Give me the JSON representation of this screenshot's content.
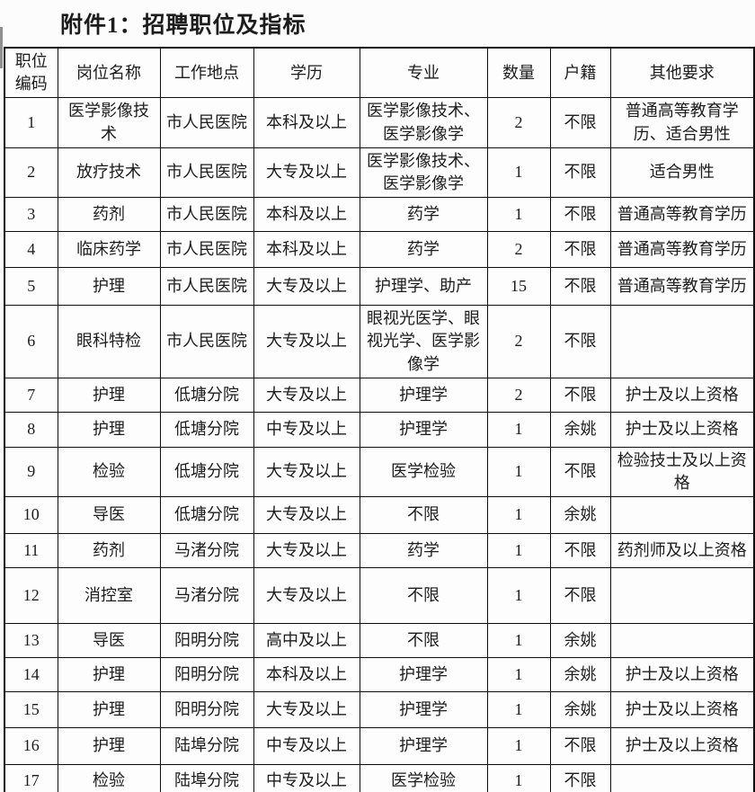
{
  "page": {
    "title": "附件1：招聘职位及指标"
  },
  "table": {
    "columns": [
      "职位编码",
      "岗位名称",
      "工作地点",
      "学历",
      "专业",
      "数量",
      "户籍",
      "其他要求"
    ],
    "rows": [
      [
        "1",
        "医学影像技术",
        "市人民医院",
        "本科及以上",
        "医学影像技术、医学影像学",
        "2",
        "不限",
        "普通高等教育学历、适合男性"
      ],
      [
        "2",
        "放疗技术",
        "市人民医院",
        "大专及以上",
        "医学影像技术、医学影像学",
        "1",
        "不限",
        "适合男性"
      ],
      [
        "3",
        "药剂",
        "市人民医院",
        "本科及以上",
        "药学",
        "1",
        "不限",
        "普通高等教育学历"
      ],
      [
        "4",
        "临床药学",
        "市人民医院",
        "本科及以上",
        "药学",
        "2",
        "不限",
        "普通高等教育学历"
      ],
      [
        "5",
        "护理",
        "市人民医院",
        "大专及以上",
        "护理学、助产",
        "15",
        "不限",
        "普通高等教育学历"
      ],
      [
        "6",
        "眼科特检",
        "市人民医院",
        "大专及以上",
        "眼视光医学、眼视光学、医学影像学",
        "2",
        "不限",
        ""
      ],
      [
        "7",
        "护理",
        "低塘分院",
        "大专及以上",
        "护理学",
        "2",
        "不限",
        "护士及以上资格"
      ],
      [
        "8",
        "护理",
        "低塘分院",
        "中专及以上",
        "护理学",
        "1",
        "余姚",
        "护士及以上资格"
      ],
      [
        "9",
        "检验",
        "低塘分院",
        "大专及以上",
        "医学检验",
        "1",
        "不限",
        "检验技士及以上资格"
      ],
      [
        "10",
        "导医",
        "低塘分院",
        "大专及以上",
        "不限",
        "1",
        "余姚",
        ""
      ],
      [
        "11",
        "药剂",
        "马渚分院",
        "大专及以上",
        "药学",
        "1",
        "不限",
        "药剂师及以上资格"
      ],
      [
        "12",
        "消控室",
        "马渚分院",
        "大专及以上",
        "不限",
        "1",
        "不限",
        ""
      ],
      [
        "13",
        "导医",
        "阳明分院",
        "高中及以上",
        "不限",
        "1",
        "余姚",
        ""
      ],
      [
        "14",
        "护理",
        "阳明分院",
        "本科及以上",
        "护理学",
        "1",
        "余姚",
        "护士及以上资格"
      ],
      [
        "15",
        "护理",
        "阳明分院",
        "大专及以上",
        "护理学",
        "1",
        "余姚",
        "护士及以上资格"
      ],
      [
        "16",
        "护理",
        "陆埠分院",
        "中专及以上",
        "护理学",
        "1",
        "不限",
        "护士及以上资格"
      ],
      [
        "17",
        "检验",
        "陆埠分院",
        "中专及以上",
        "医学检验",
        "1",
        "不限",
        ""
      ]
    ]
  }
}
